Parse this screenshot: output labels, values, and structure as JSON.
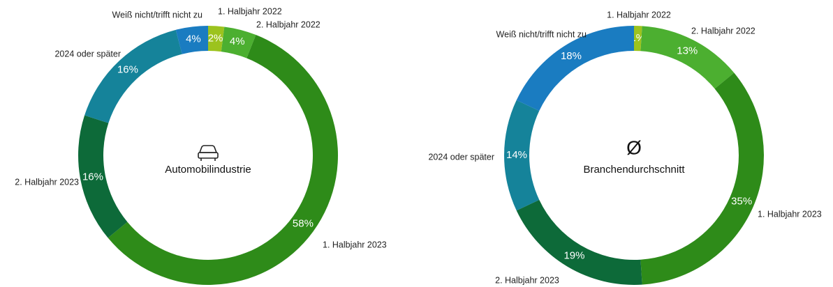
{
  "chart_data": [
    {
      "type": "donut",
      "title": "Automobilindustrie",
      "categories": [
        "1. Halbjahr 2022",
        "2. Halbjahr 2022",
        "1. Halbjahr 2023",
        "2. Halbjahr 2023",
        "2024 oder später",
        "Weiß nicht/trifft nicht zu"
      ],
      "values": [
        2,
        4,
        58,
        16,
        16,
        4
      ],
      "value_labels": [
        "2%",
        "4%",
        "58%",
        "16%",
        "16%",
        "4%"
      ],
      "colors": [
        "#9cc31e",
        "#4caf30",
        "#2e8b19",
        "#0d6a39",
        "#15839a",
        "#1a7cc1"
      ]
    },
    {
      "type": "donut",
      "title": "Branchendurchschnitt",
      "symbol": "Ø",
      "categories": [
        "1. Halbjahr 2022",
        "2. Halbjahr 2022",
        "1. Halbjahr 2023",
        "2. Halbjahr 2023",
        "2024 oder später",
        "Weiß nicht/trifft nicht zu"
      ],
      "values": [
        1,
        13,
        35,
        19,
        14,
        18
      ],
      "value_labels": [
        "1%",
        "13%",
        "35%",
        "19%",
        "14%",
        "18%"
      ],
      "colors": [
        "#9cc31e",
        "#4caf30",
        "#2e8b19",
        "#0d6a39",
        "#15839a",
        "#1a7cc1"
      ]
    }
  ]
}
